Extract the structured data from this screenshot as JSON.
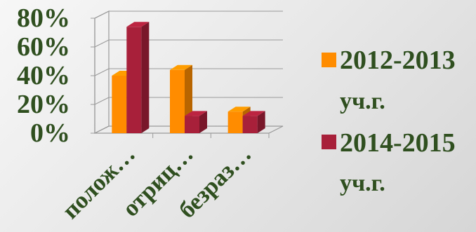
{
  "chart_data": {
    "type": "bar",
    "categories": [
      "полож…",
      "отриц…",
      "безраз…"
    ],
    "series": [
      {
        "name": "2012-2013 уч.г.",
        "values": [
          40,
          44,
          15
        ],
        "color": "#ff8c00"
      },
      {
        "name": "2014-2015 уч.г.",
        "values": [
          74,
          12,
          12
        ],
        "color": "#a8203a"
      }
    ],
    "y_ticks": [
      "0%",
      "20%",
      "40%",
      "60%",
      "80%"
    ],
    "ylim": [
      0,
      80
    ],
    "legend_position": "right",
    "legend": [
      {
        "line1": "2012-2013",
        "line2": "уч.г.",
        "color": "#ff8c00"
      },
      {
        "line1": "2014-2015",
        "line2": "уч.г.",
        "color": "#a8203a"
      }
    ],
    "grid": true,
    "three_d": true
  }
}
